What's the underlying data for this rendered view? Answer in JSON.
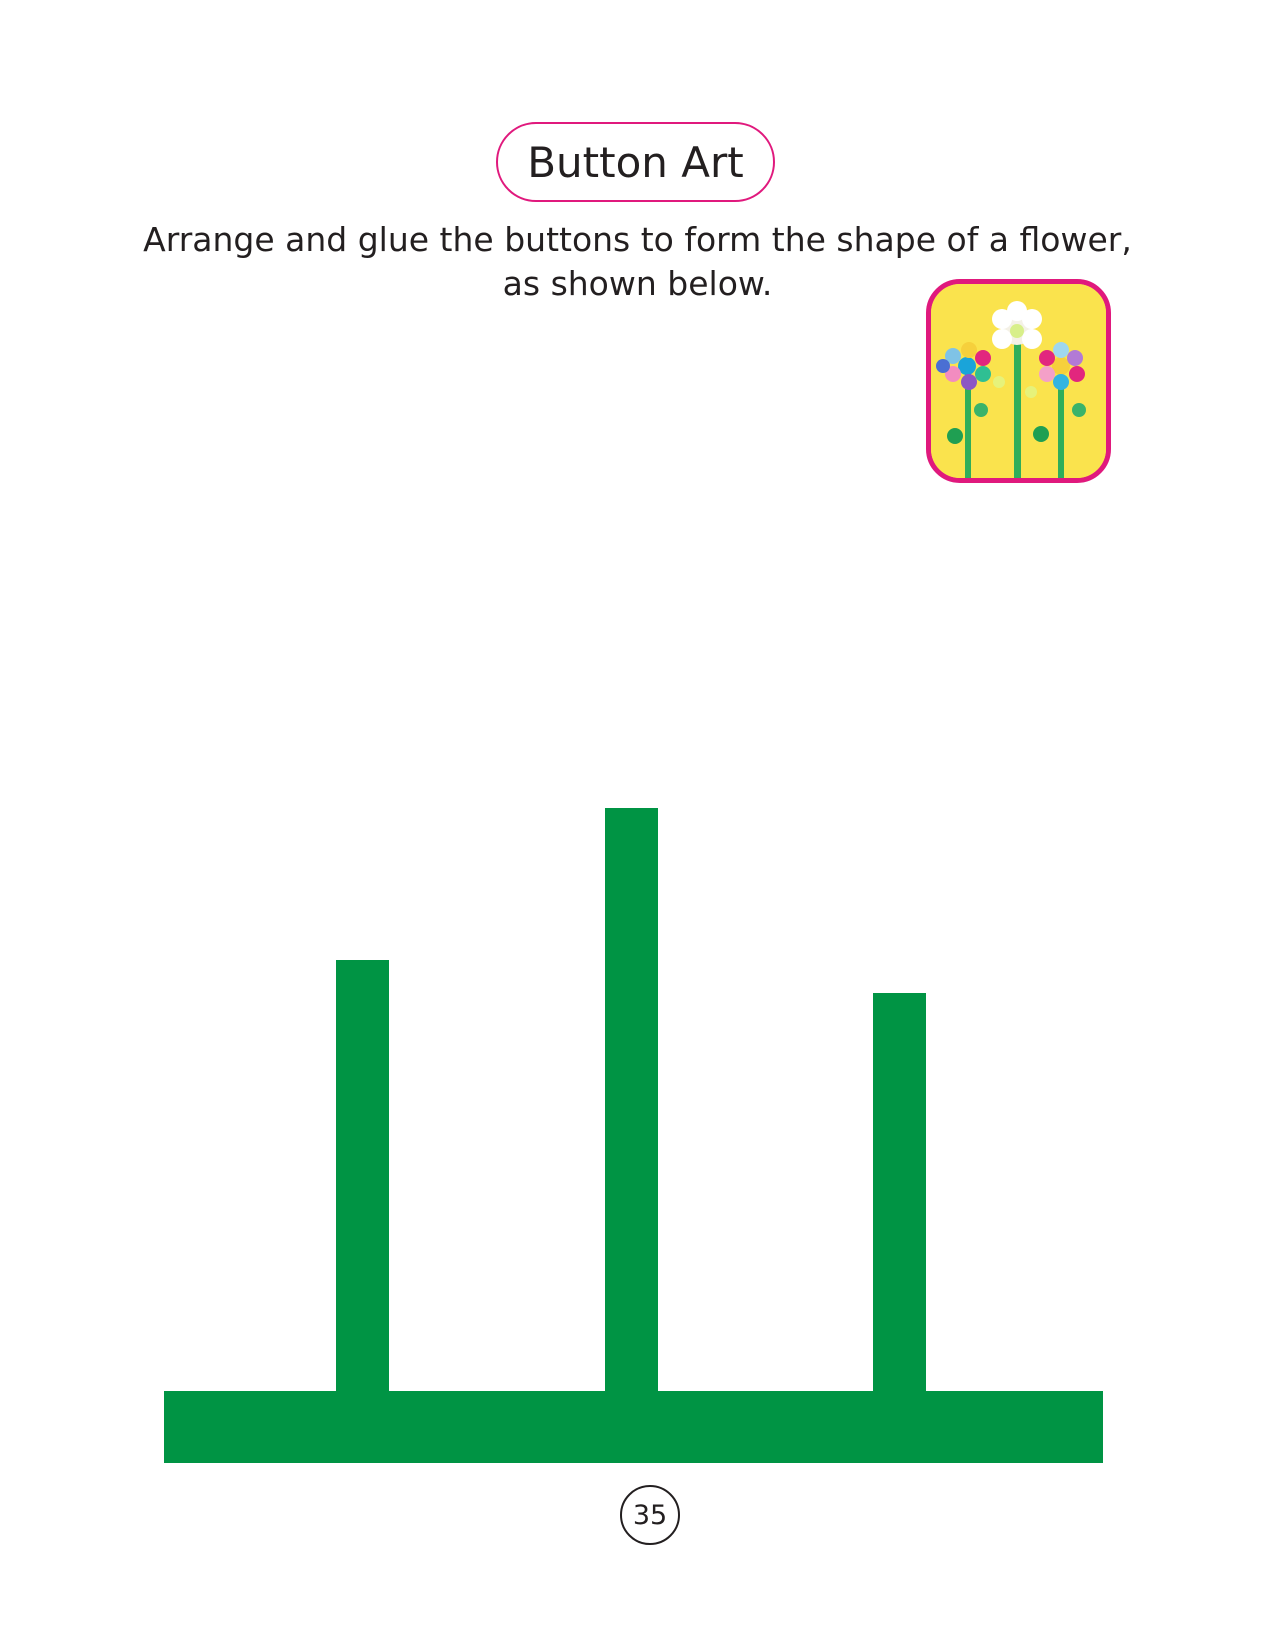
{
  "activity": {
    "title": "Button Art",
    "instruction_line1": "Arrange and glue the buttons to form the shape of a flower,",
    "instruction_line2": "as shown below."
  },
  "example_image": {
    "icon": "button-flowers-photo-icon",
    "description_visible": false
  },
  "template": {
    "stem_color": "#009444",
    "stems": [
      {
        "name": "left-stem"
      },
      {
        "name": "center-stem"
      },
      {
        "name": "right-stem"
      }
    ]
  },
  "colors": {
    "accent": "#e0197d",
    "stem": "#009444",
    "photo_background": "#fae34d"
  },
  "footer": {
    "page_number": "35"
  }
}
